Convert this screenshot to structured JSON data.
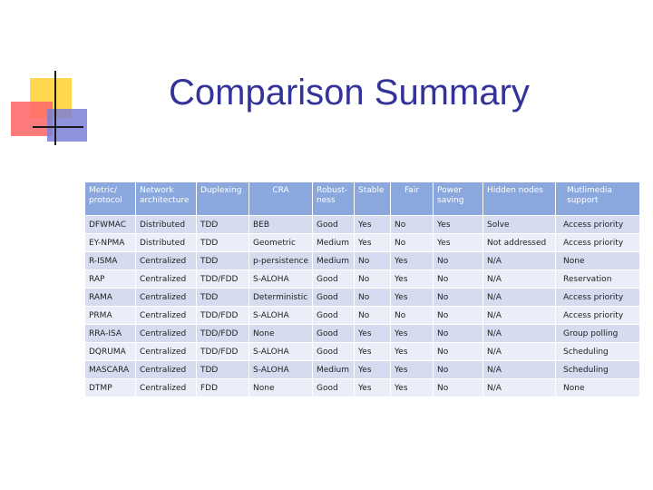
{
  "slide": {
    "title": "Comparison Summary"
  },
  "table": {
    "headers": [
      "Metric/ protocol",
      "Network architecture",
      "Duplexing",
      "CRA",
      "Robust-ness",
      "Stable",
      "Fair",
      "Power saving",
      "Hidden nodes",
      "Mutlimedia support"
    ],
    "rows": [
      [
        "DFWMAC",
        "Distributed",
        "TDD",
        "BEB",
        "Good",
        "Yes",
        "No",
        "Yes",
        "Solve",
        "Access priority"
      ],
      [
        "EY-NPMA",
        "Distributed",
        "TDD",
        "Geometric",
        "Medium",
        "Yes",
        "No",
        "Yes",
        "Not addressed",
        "Access priority"
      ],
      [
        "R-ISMA",
        "Centralized",
        "TDD",
        "p-persistence",
        "Medium",
        "No",
        "Yes",
        "No",
        "N/A",
        "None"
      ],
      [
        "RAP",
        "Centralized",
        "TDD/FDD",
        "S-ALOHA",
        "Good",
        "No",
        "Yes",
        "No",
        "N/A",
        "Reservation"
      ],
      [
        "RAMA",
        "Centralized",
        "TDD",
        "Deterministic",
        "Good",
        "No",
        "Yes",
        "No",
        "N/A",
        "Access priority"
      ],
      [
        "PRMA",
        "Centralized",
        "TDD/FDD",
        "S-ALOHA",
        "Good",
        "No",
        "No",
        "No",
        "N/A",
        "Access priority"
      ],
      [
        "RRA-ISA",
        "Centralized",
        "TDD/FDD",
        "None",
        "Good",
        "Yes",
        "Yes",
        "No",
        "N/A",
        "Group polling"
      ],
      [
        "DQRUMA",
        "Centralized",
        "TDD/FDD",
        "S-ALOHA",
        "Good",
        "Yes",
        "Yes",
        "No",
        "N/A",
        "Scheduling"
      ],
      [
        "MASCARA",
        "Centralized",
        "TDD",
        "S-ALOHA",
        "Medium",
        "Yes",
        "Yes",
        "No",
        "N/A",
        "Scheduling"
      ],
      [
        "DTMP",
        "Centralized",
        "FDD",
        "None",
        "Good",
        "Yes",
        "Yes",
        "No",
        "N/A",
        "None"
      ]
    ]
  }
}
